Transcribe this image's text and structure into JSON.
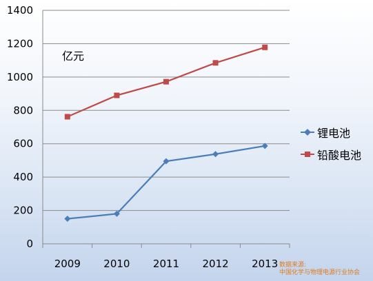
{
  "chart_data": {
    "type": "line",
    "categories": [
      "2009",
      "2010",
      "2011",
      "2012",
      "2013"
    ],
    "series": [
      {
        "name": "锂电池",
        "values": [
          150,
          180,
          495,
          538,
          587
        ],
        "color": "#4a7ebb",
        "marker": "diamond"
      },
      {
        "name": "铅酸电池",
        "values": [
          762,
          890,
          972,
          1085,
          1178
        ],
        "color": "#be4b48",
        "marker": "square"
      }
    ],
    "ylim": [
      0,
      1400
    ],
    "yticks": [
      "0",
      "200",
      "400",
      "600",
      "800",
      "1000",
      "1200",
      "1400"
    ],
    "grid": true,
    "legend": "right",
    "unit_label": "亿元"
  },
  "source": {
    "line1": "数据来源:",
    "line2": "中国化学与物理电源行业协会"
  }
}
